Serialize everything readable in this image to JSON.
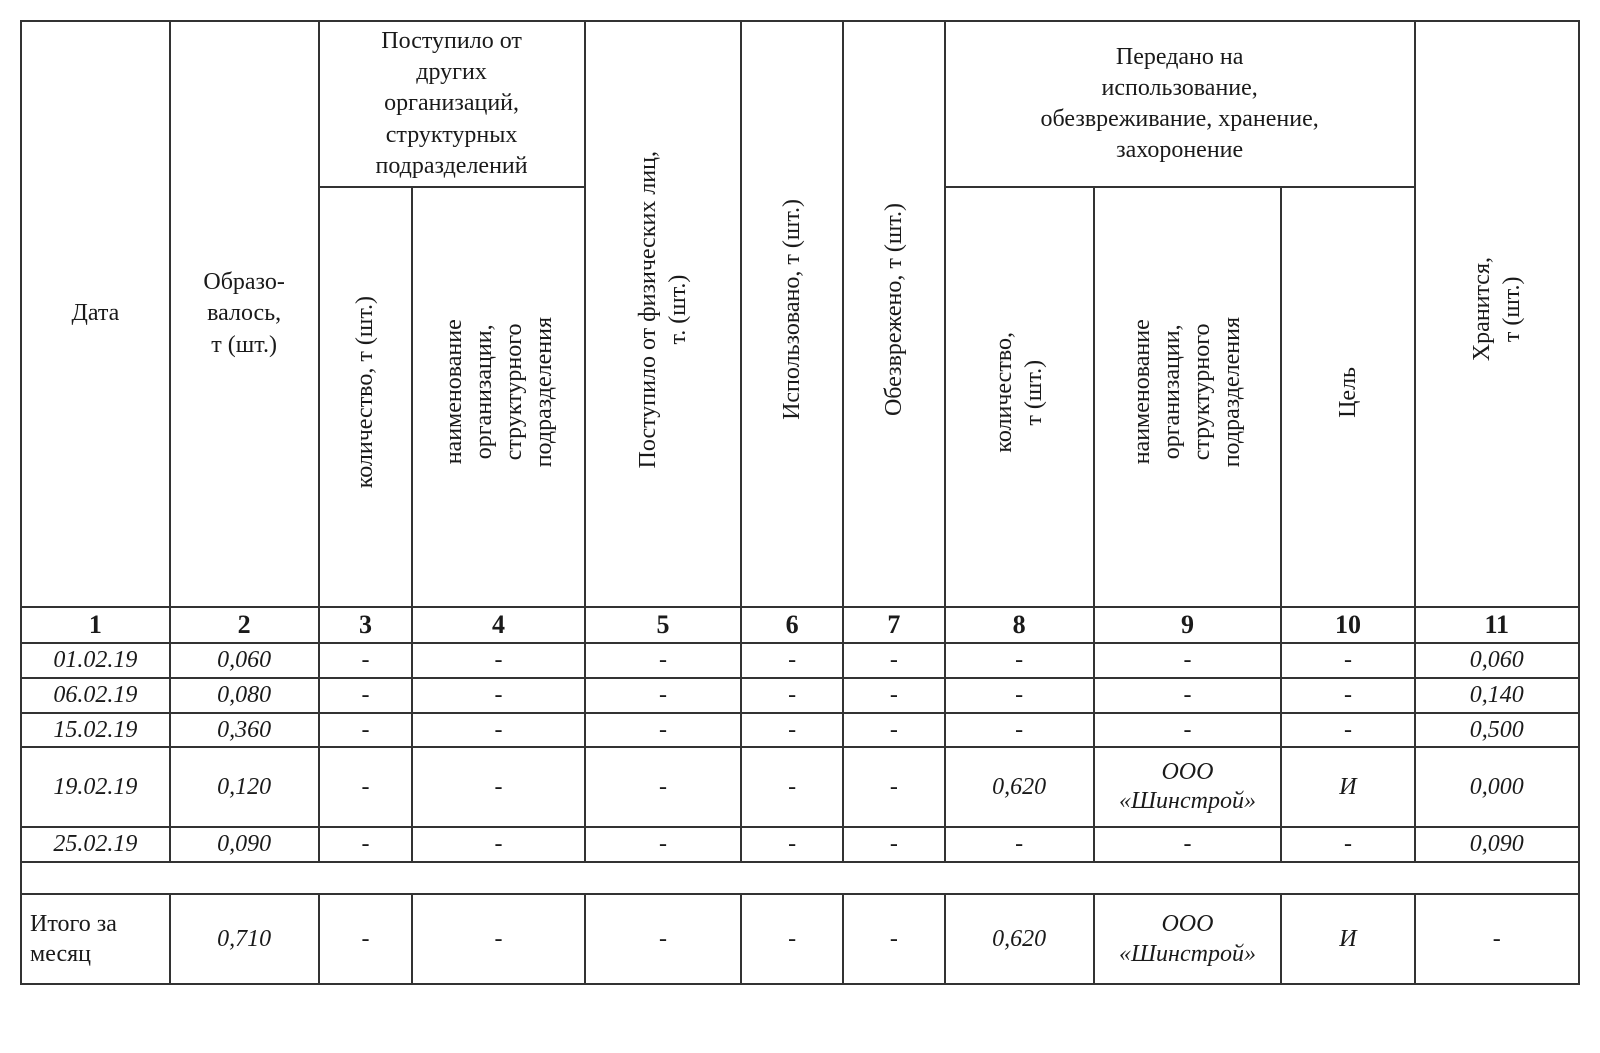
{
  "table": {
    "type": "table",
    "border_color": "#333333",
    "background_color": "#ffffff",
    "text_color": "#1a1a1a",
    "font_family": "Times New Roman",
    "header_fontsize": 24,
    "num_row_fontsize": 26,
    "data_fontsize": 24,
    "columns": [
      {
        "num": "1",
        "label": "Дата",
        "width_pct": 9.5
      },
      {
        "num": "2",
        "label": "Образо-\nвалось,\nт (шт.)",
        "width_pct": 9.5
      },
      {
        "num": "3",
        "label": "количество, т (шт.)",
        "group": "received_org",
        "width_pct": 6
      },
      {
        "num": "4",
        "label": "наименование\nорганизации,\nструктурного\nподразделения",
        "group": "received_org",
        "width_pct": 11
      },
      {
        "num": "5",
        "label": "Поступило от физических лиц,\nт. (шт.)",
        "width_pct": 10
      },
      {
        "num": "6",
        "label": "Использовано, т (шт.)",
        "width_pct": 6.5
      },
      {
        "num": "7",
        "label": "Обезврежено, т (шт.)",
        "width_pct": 6.5
      },
      {
        "num": "8",
        "label": "количество,\nт (шт.)",
        "group": "transferred",
        "width_pct": 9.5
      },
      {
        "num": "9",
        "label": "наименование\nорганизации,\nструктурного\nподразделения",
        "group": "transferred",
        "width_pct": 12
      },
      {
        "num": "10",
        "label": "Цель",
        "group": "transferred",
        "width_pct": 8.5
      },
      {
        "num": "11",
        "label": "Хранится,\nт (шт.)",
        "width_pct": 10.5
      }
    ],
    "group_headers": {
      "received_org": "Поступило от\nдругих\nорганизаций,\nструктурных\nподразделений",
      "transferred": "Передано на\nиспользование,\nобезвреживание, хранение,\nзахоронение"
    },
    "num_row": [
      "1",
      "2",
      "3",
      "4",
      "5",
      "6",
      "7",
      "8",
      "9",
      "10",
      "11"
    ],
    "rows": [
      [
        "01.02.19",
        "0,060",
        "-",
        "-",
        "-",
        "-",
        "-",
        "-",
        "-",
        "-",
        "0,060"
      ],
      [
        "06.02.19",
        "0,080",
        "-",
        "-",
        "-",
        "-",
        "-",
        "-",
        "-",
        "-",
        "0,140"
      ],
      [
        "15.02.19",
        "0,360",
        "-",
        "-",
        "-",
        "-",
        "-",
        "-",
        "-",
        "-",
        "0,500"
      ],
      [
        "19.02.19",
        "0,120",
        "-",
        "-",
        "-",
        "-",
        "-",
        "0,620",
        "ООО\n«Шинстрой»",
        "И",
        "0,000"
      ],
      [
        "25.02.19",
        "0,090",
        "-",
        "-",
        "-",
        "-",
        "-",
        "-",
        "-",
        "-",
        "0,090"
      ]
    ],
    "total": {
      "label": "Итого за\nмесяц",
      "cells": [
        "0,710",
        "-",
        "-",
        "-",
        "-",
        "-",
        "0,620",
        "ООО\n«Шинстрой»",
        "И",
        "-"
      ]
    }
  }
}
